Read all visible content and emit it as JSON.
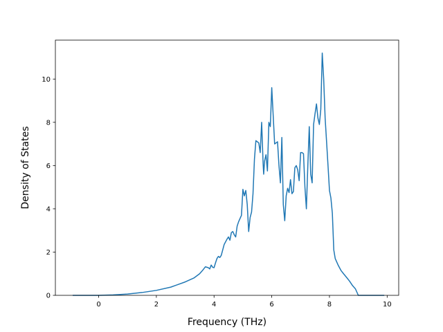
{
  "chart_data": {
    "type": "line",
    "title": "",
    "xlabel": "Frequency (THz)",
    "ylabel": "Density of States",
    "xlim": [
      -1.5,
      10.4
    ],
    "ylim": [
      0,
      11.8
    ],
    "xticks": [
      0,
      2,
      4,
      6,
      8,
      10
    ],
    "yticks": [
      0,
      2,
      4,
      6,
      8,
      10
    ],
    "grid": false,
    "legend": "none",
    "series": [
      {
        "color": "#1f77b4",
        "points": [
          [
            -0.9,
            0.0
          ],
          [
            0.0,
            0.0
          ],
          [
            0.5,
            0.02
          ],
          [
            1.0,
            0.06
          ],
          [
            1.5,
            0.13
          ],
          [
            2.0,
            0.23
          ],
          [
            2.5,
            0.38
          ],
          [
            3.0,
            0.62
          ],
          [
            3.3,
            0.8
          ],
          [
            3.5,
            1.0
          ],
          [
            3.6,
            1.15
          ],
          [
            3.7,
            1.32
          ],
          [
            3.8,
            1.28
          ],
          [
            3.85,
            1.22
          ],
          [
            3.9,
            1.4
          ],
          [
            3.95,
            1.3
          ],
          [
            4.0,
            1.28
          ],
          [
            4.05,
            1.5
          ],
          [
            4.1,
            1.7
          ],
          [
            4.15,
            1.8
          ],
          [
            4.2,
            1.75
          ],
          [
            4.25,
            1.85
          ],
          [
            4.3,
            2.1
          ],
          [
            4.35,
            2.35
          ],
          [
            4.45,
            2.6
          ],
          [
            4.5,
            2.7
          ],
          [
            4.55,
            2.55
          ],
          [
            4.6,
            2.9
          ],
          [
            4.65,
            2.95
          ],
          [
            4.7,
            2.8
          ],
          [
            4.75,
            2.7
          ],
          [
            4.8,
            3.2
          ],
          [
            4.85,
            3.4
          ],
          [
            4.9,
            3.55
          ],
          [
            4.95,
            3.7
          ],
          [
            5.0,
            4.9
          ],
          [
            5.05,
            4.6
          ],
          [
            5.1,
            4.85
          ],
          [
            5.15,
            4.2
          ],
          [
            5.2,
            2.95
          ],
          [
            5.25,
            3.6
          ],
          [
            5.3,
            3.85
          ],
          [
            5.35,
            4.7
          ],
          [
            5.4,
            6.3
          ],
          [
            5.45,
            7.15
          ],
          [
            5.5,
            7.1
          ],
          [
            5.55,
            7.05
          ],
          [
            5.6,
            6.6
          ],
          [
            5.65,
            8.0
          ],
          [
            5.7,
            6.1
          ],
          [
            5.72,
            5.6
          ],
          [
            5.75,
            6.2
          ],
          [
            5.8,
            6.5
          ],
          [
            5.85,
            5.75
          ],
          [
            5.9,
            8.0
          ],
          [
            5.95,
            7.8
          ],
          [
            6.0,
            9.6
          ],
          [
            6.05,
            8.3
          ],
          [
            6.1,
            7.0
          ],
          [
            6.15,
            7.05
          ],
          [
            6.2,
            7.1
          ],
          [
            6.25,
            6.0
          ],
          [
            6.3,
            5.2
          ],
          [
            6.35,
            7.3
          ],
          [
            6.4,
            4.2
          ],
          [
            6.45,
            3.45
          ],
          [
            6.5,
            4.6
          ],
          [
            6.55,
            4.95
          ],
          [
            6.6,
            4.75
          ],
          [
            6.65,
            5.35
          ],
          [
            6.7,
            4.7
          ],
          [
            6.75,
            4.8
          ],
          [
            6.8,
            5.9
          ],
          [
            6.85,
            6.0
          ],
          [
            6.9,
            5.8
          ],
          [
            6.95,
            5.3
          ],
          [
            7.0,
            6.6
          ],
          [
            7.05,
            6.6
          ],
          [
            7.1,
            6.55
          ],
          [
            7.15,
            5.0
          ],
          [
            7.2,
            4.0
          ],
          [
            7.25,
            6.0
          ],
          [
            7.3,
            7.8
          ],
          [
            7.35,
            5.6
          ],
          [
            7.4,
            5.2
          ],
          [
            7.45,
            7.9
          ],
          [
            7.5,
            8.4
          ],
          [
            7.55,
            8.85
          ],
          [
            7.6,
            8.2
          ],
          [
            7.65,
            7.9
          ],
          [
            7.7,
            8.6
          ],
          [
            7.75,
            11.2
          ],
          [
            7.8,
            10.0
          ],
          [
            7.85,
            8.2
          ],
          [
            7.9,
            7.1
          ],
          [
            7.95,
            6.0
          ],
          [
            8.0,
            4.85
          ],
          [
            8.05,
            4.5
          ],
          [
            8.1,
            3.8
          ],
          [
            8.15,
            2.1
          ],
          [
            8.2,
            1.7
          ],
          [
            8.3,
            1.4
          ],
          [
            8.4,
            1.15
          ],
          [
            8.5,
            0.98
          ],
          [
            8.6,
            0.82
          ],
          [
            8.7,
            0.65
          ],
          [
            8.8,
            0.45
          ],
          [
            8.9,
            0.3
          ],
          [
            9.0,
            0.0
          ],
          [
            9.5,
            0.0
          ],
          [
            9.9,
            0.0
          ]
        ]
      }
    ]
  }
}
